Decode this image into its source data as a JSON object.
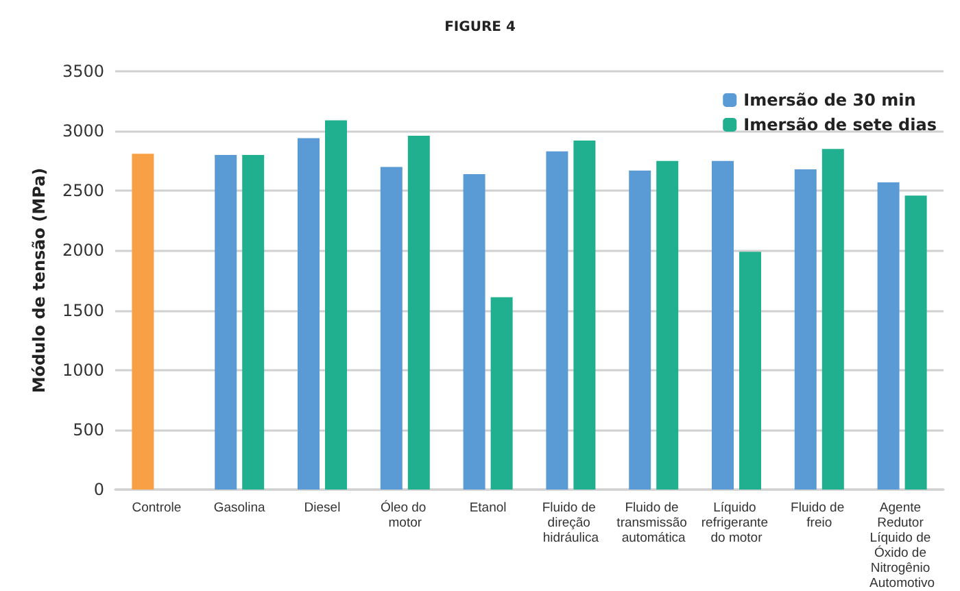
{
  "chart_data": {
    "type": "bar",
    "title": "FIGURE 4",
    "ylabel": "Módulo de tensão (MPa)",
    "categories": [
      "Controle",
      "Gasolina",
      "Diesel",
      "Óleo do motor",
      "Etanol",
      "Fluido de direção hidráulica",
      "Fluido de transmissão automática",
      "Líquido refrigerante do motor",
      "Fluido de freio",
      "Agente Redutor Líquido de Óxido de Nitrogênio Automotivo"
    ],
    "series": [
      {
        "name": "Imersão de 30 min",
        "color": "#5b9bd5",
        "values": [
          null,
          2800,
          2940,
          2700,
          2640,
          2830,
          2670,
          2750,
          2680,
          2570
        ]
      },
      {
        "name": "Imersão de sete dias",
        "color": "#21b08f",
        "values": [
          null,
          2800,
          3090,
          2960,
          1610,
          2920,
          2750,
          1990,
          2850,
          2460
        ]
      },
      {
        "color": "#f8a045",
        "values": [
          2810,
          null,
          null,
          null,
          null,
          null,
          null,
          null,
          null,
          null
        ]
      }
    ],
    "ylim": [
      0,
      3500
    ],
    "yticks": [
      0,
      500,
      1000,
      1500,
      2000,
      2500,
      3000,
      3500
    ],
    "grid": "y",
    "legend": "top right"
  }
}
